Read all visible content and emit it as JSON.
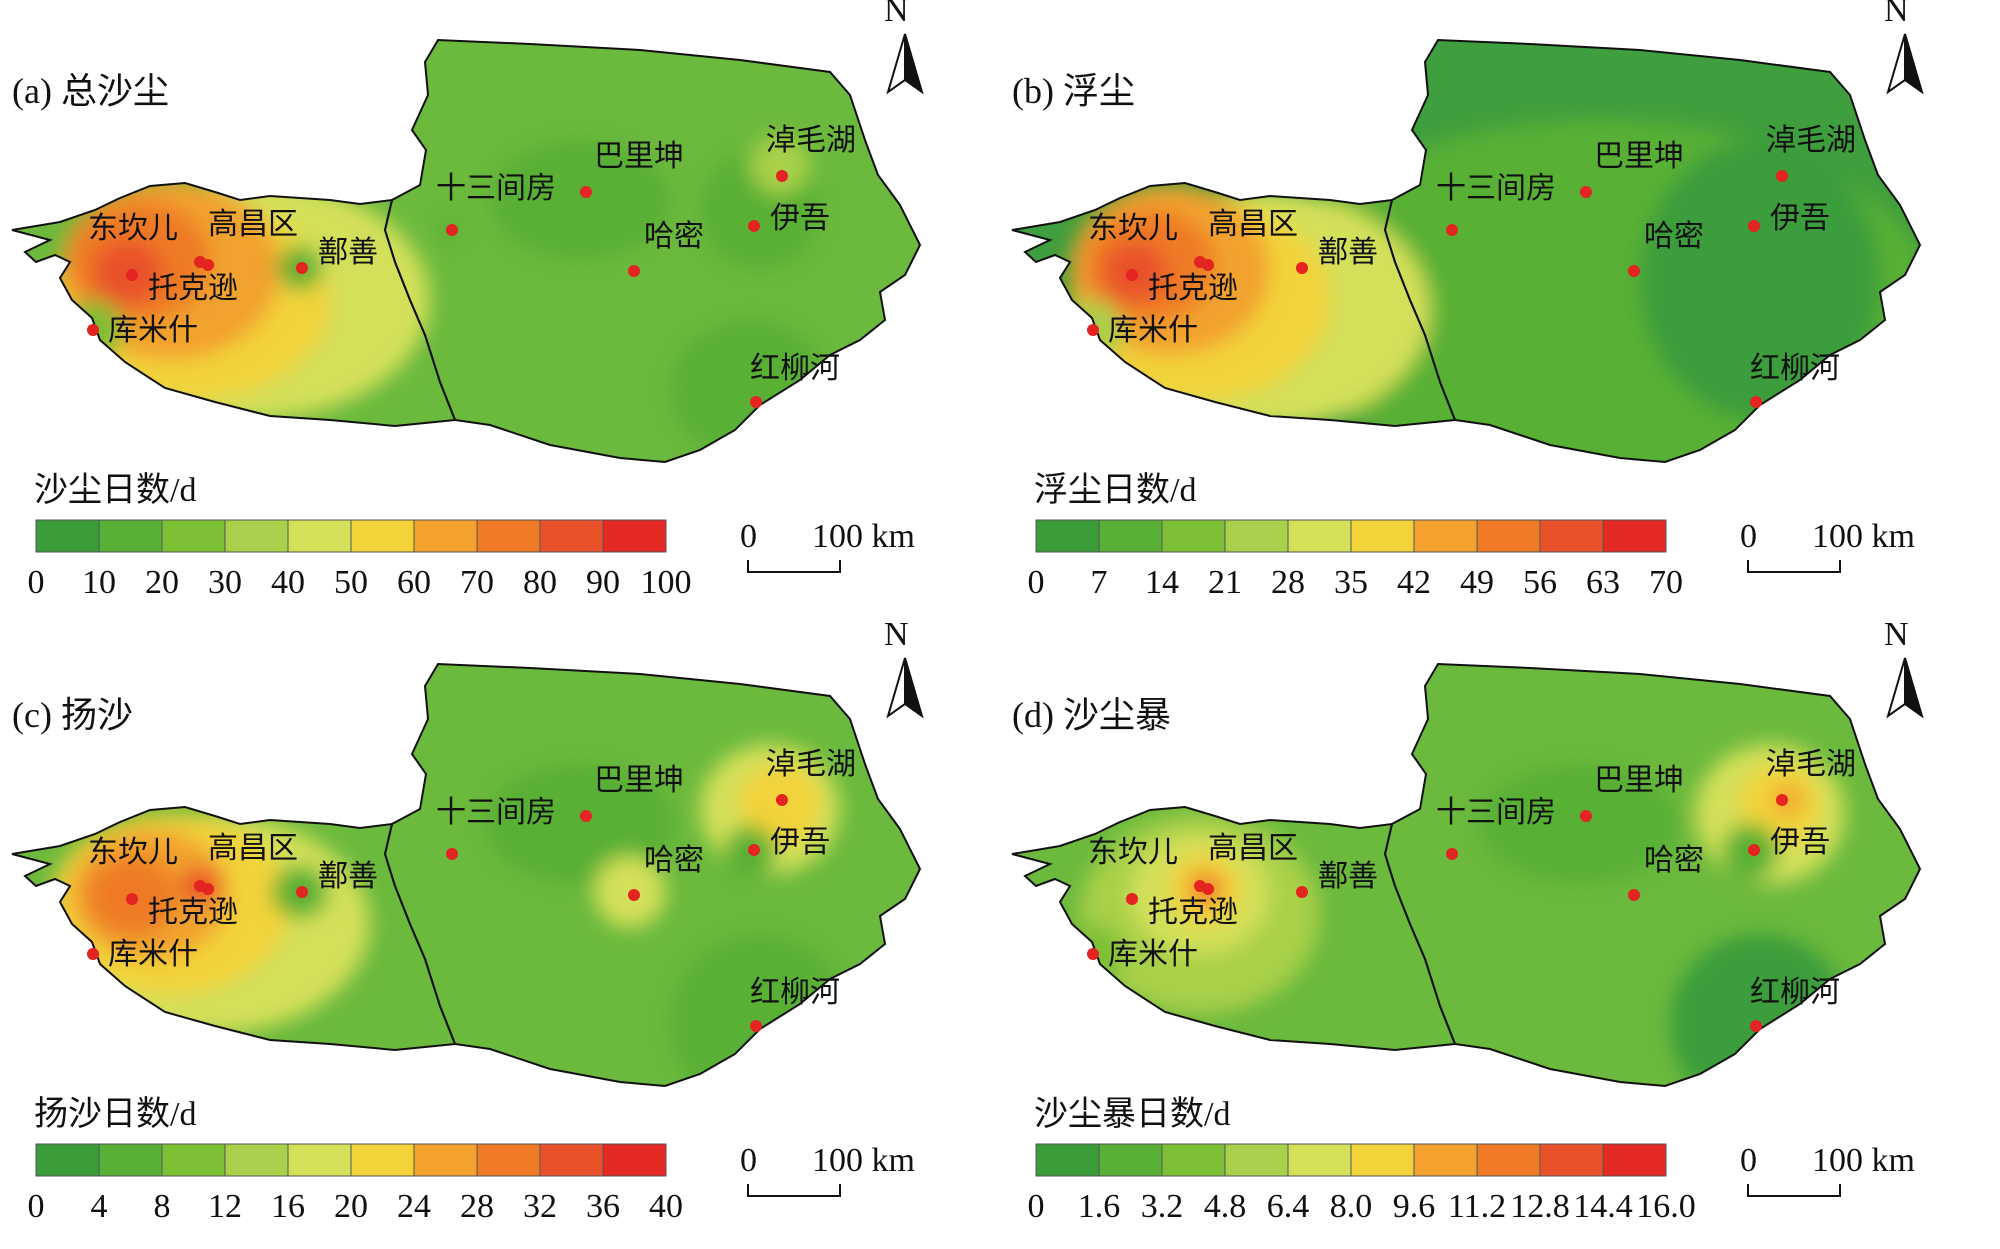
{
  "north_label": "N",
  "scale": {
    "zero": "0",
    "distance": "100 km"
  },
  "colors": {
    "ramp": [
      "#3a9d3a",
      "#58b036",
      "#7dbf35",
      "#a9d04a",
      "#d4e05a",
      "#f2d33a",
      "#f2a22d",
      "#ee7a25",
      "#e9512a",
      "#e42a22"
    ],
    "base_green": "#6bb93d",
    "dark_green": "#3f9e3d",
    "point": "#e32420"
  },
  "stations": [
    {
      "name": "东坎儿"
    },
    {
      "name": "高昌区"
    },
    {
      "name": "托克逊"
    },
    {
      "name": "库米什"
    },
    {
      "name": "鄯善"
    },
    {
      "name": "十三间房"
    },
    {
      "name": "巴里坤"
    },
    {
      "name": "哈密"
    },
    {
      "name": "淖毛湖"
    },
    {
      "name": "伊吾"
    },
    {
      "name": "红柳河"
    }
  ],
  "panels": [
    {
      "title": "(a) 总沙尘",
      "legend_title": "沙尘日数/d",
      "ticks": [
        "0",
        "10",
        "20",
        "30",
        "40",
        "50",
        "60",
        "70",
        "80",
        "90",
        "100"
      ]
    },
    {
      "title": "(b) 浮尘",
      "legend_title": "浮尘日数/d",
      "ticks": [
        "0",
        "7",
        "14",
        "21",
        "28",
        "35",
        "42",
        "49",
        "56",
        "63",
        "70"
      ]
    },
    {
      "title": "(c) 扬沙",
      "legend_title": "扬沙日数/d",
      "ticks": [
        "0",
        "4",
        "8",
        "12",
        "16",
        "20",
        "24",
        "28",
        "32",
        "36",
        "40"
      ]
    },
    {
      "title": "(d) 沙尘暴",
      "legend_title": "沙尘暴日数/d",
      "ticks": [
        "0",
        "1.6",
        "3.2",
        "4.8",
        "6.4",
        "8.0",
        "9.6",
        "11.2",
        "12.8",
        "14.4",
        "16.0"
      ]
    }
  ]
}
